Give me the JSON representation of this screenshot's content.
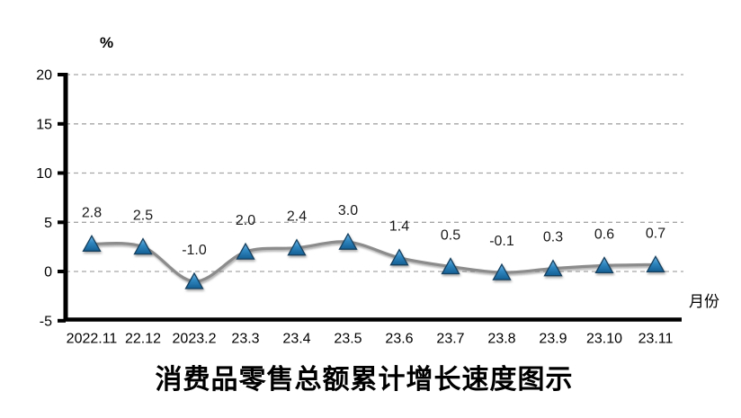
{
  "chart_data": {
    "type": "line",
    "title": "消费品零售总额累计增长速度图示",
    "ylabel": "%",
    "xlabel": "月份",
    "categories": [
      "2022.11",
      "22.12",
      "2023.2",
      "23.3",
      "23.4",
      "23.5",
      "23.6",
      "23.7",
      "23.8",
      "23.9",
      "23.10",
      "23.11"
    ],
    "values": [
      2.8,
      2.5,
      -1.0,
      2.0,
      2.4,
      3.0,
      1.4,
      0.5,
      -0.1,
      0.3,
      0.6,
      0.7
    ],
    "data_labels": [
      "2.8",
      "2.5",
      "-1.0",
      "2.0",
      "2.4",
      "3.0",
      "1.4",
      "0.5",
      "-0.1",
      "0.3",
      "0.6",
      "0.7"
    ],
    "yticks": [
      20,
      15,
      10,
      5,
      0,
      -5
    ],
    "ylim": [
      -5,
      20
    ],
    "grid": "horizontal-dashed",
    "legend": "none",
    "line_style": "smooth",
    "marker": "triangle",
    "colors": {
      "marker_fill_top": "#74B6E3",
      "marker_fill_mid": "#2F87C0",
      "marker_fill_bottom": "#135E93",
      "marker_stroke": "#16405F",
      "line": "#8C8C8C",
      "grid": "#A6A6A6",
      "axis": "#000000",
      "text": "#000000"
    }
  }
}
